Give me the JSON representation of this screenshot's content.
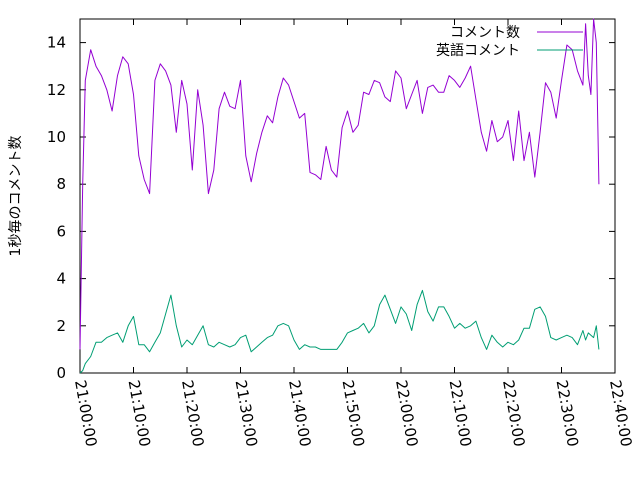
{
  "chart_data": {
    "type": "line",
    "title": "",
    "xlabel": "",
    "ylabel": "1秒毎のコメント数",
    "ylim": [
      0,
      15
    ],
    "yticks": [
      0,
      2,
      4,
      6,
      8,
      10,
      12,
      14
    ],
    "xlim": [
      "21:00:00",
      "22:40:00"
    ],
    "xticks": [
      "21:00:00",
      "21:10:00",
      "21:20:00",
      "21:30:00",
      "21:40:00",
      "21:50:00",
      "22:00:00",
      "22:10:00",
      "22:20:00",
      "22:30:00",
      "22:40:00"
    ],
    "grid": false,
    "legend_position": "top-right",
    "x": [
      "21:00:00",
      "21:00:30",
      "21:01:00",
      "21:02:00",
      "21:03:00",
      "21:04:00",
      "21:05:00",
      "21:06:00",
      "21:07:00",
      "21:08:00",
      "21:09:00",
      "21:10:00",
      "21:11:00",
      "21:12:00",
      "21:13:00",
      "21:14:00",
      "21:15:00",
      "21:16:00",
      "21:17:00",
      "21:18:00",
      "21:19:00",
      "21:20:00",
      "21:21:00",
      "21:22:00",
      "21:23:00",
      "21:24:00",
      "21:25:00",
      "21:26:00",
      "21:27:00",
      "21:28:00",
      "21:29:00",
      "21:30:00",
      "21:31:00",
      "21:32:00",
      "21:33:00",
      "21:34:00",
      "21:35:00",
      "21:36:00",
      "21:37:00",
      "21:38:00",
      "21:39:00",
      "21:40:00",
      "21:41:00",
      "21:42:00",
      "21:43:00",
      "21:44:00",
      "21:45:00",
      "21:46:00",
      "21:47:00",
      "21:48:00",
      "21:49:00",
      "21:50:00",
      "21:51:00",
      "21:52:00",
      "21:53:00",
      "21:54:00",
      "21:55:00",
      "21:56:00",
      "21:57:00",
      "21:58:00",
      "21:59:00",
      "22:00:00",
      "22:01:00",
      "22:02:00",
      "22:03:00",
      "22:04:00",
      "22:05:00",
      "22:06:00",
      "22:07:00",
      "22:08:00",
      "22:09:00",
      "22:10:00",
      "22:11:00",
      "22:12:00",
      "22:13:00",
      "22:14:00",
      "22:15:00",
      "22:16:00",
      "22:17:00",
      "22:18:00",
      "22:19:00",
      "22:20:00",
      "22:21:00",
      "22:22:00",
      "22:23:00",
      "22:24:00",
      "22:25:00",
      "22:26:00",
      "22:27:00",
      "22:28:00",
      "22:29:00",
      "22:30:00",
      "22:31:00",
      "22:32:00",
      "22:33:00",
      "22:34:00",
      "22:34:30",
      "22:35:00",
      "22:35:30",
      "22:36:00",
      "22:36:30",
      "22:37:00"
    ],
    "series": [
      {
        "name": "コメント数",
        "color": "#9400d3",
        "values": [
          1.0,
          8.0,
          12.4,
          13.7,
          13.0,
          12.6,
          12.0,
          11.1,
          12.6,
          13.4,
          13.1,
          11.8,
          9.2,
          8.2,
          7.6,
          12.4,
          13.1,
          12.8,
          12.2,
          10.2,
          12.4,
          11.4,
          8.6,
          12.0,
          10.5,
          7.6,
          8.6,
          11.2,
          11.9,
          11.3,
          11.2,
          12.4,
          9.2,
          8.1,
          9.3,
          10.2,
          10.9,
          10.6,
          11.7,
          12.5,
          12.2,
          11.5,
          10.8,
          11.0,
          8.5,
          8.4,
          8.2,
          9.6,
          8.6,
          8.3,
          10.4,
          11.1,
          10.2,
          10.5,
          11.9,
          11.8,
          12.4,
          12.3,
          11.7,
          11.5,
          12.8,
          12.5,
          11.2,
          11.8,
          12.4,
          11.0,
          12.1,
          12.2,
          11.9,
          11.9,
          12.6,
          12.4,
          12.1,
          12.5,
          13.0,
          11.6,
          10.2,
          9.4,
          10.7,
          9.8,
          10.0,
          10.7,
          9.0,
          11.1,
          9.0,
          10.2,
          8.3,
          10.2,
          12.3,
          11.9,
          10.8,
          12.4,
          13.9,
          13.7,
          12.8,
          12.2,
          14.8,
          12.6,
          11.8,
          15.0,
          14.0,
          8.0
        ]
      },
      {
        "name": "英語コメント",
        "color": "#009e73",
        "values": [
          0.0,
          0.1,
          0.4,
          0.7,
          1.3,
          1.3,
          1.5,
          1.6,
          1.7,
          1.3,
          2.0,
          2.4,
          1.2,
          1.2,
          0.9,
          1.3,
          1.7,
          2.5,
          3.3,
          2.0,
          1.1,
          1.4,
          1.2,
          1.6,
          2.0,
          1.2,
          1.1,
          1.3,
          1.2,
          1.1,
          1.2,
          1.5,
          1.6,
          0.9,
          1.1,
          1.3,
          1.5,
          1.6,
          2.0,
          2.1,
          2.0,
          1.4,
          1.0,
          1.2,
          1.1,
          1.1,
          1.0,
          1.0,
          1.0,
          1.0,
          1.3,
          1.7,
          1.8,
          1.9,
          2.1,
          1.7,
          2.0,
          2.9,
          3.3,
          2.7,
          2.1,
          2.8,
          2.5,
          1.8,
          2.9,
          3.5,
          2.6,
          2.2,
          2.8,
          2.8,
          2.4,
          1.9,
          2.1,
          1.9,
          2.0,
          2.2,
          1.5,
          1.0,
          1.6,
          1.3,
          1.1,
          1.3,
          1.2,
          1.4,
          1.9,
          1.9,
          2.7,
          2.8,
          2.4,
          1.5,
          1.4,
          1.5,
          1.6,
          1.5,
          1.2,
          1.8,
          1.4,
          1.7,
          1.6,
          1.5,
          2.0,
          1.0
        ]
      }
    ]
  }
}
